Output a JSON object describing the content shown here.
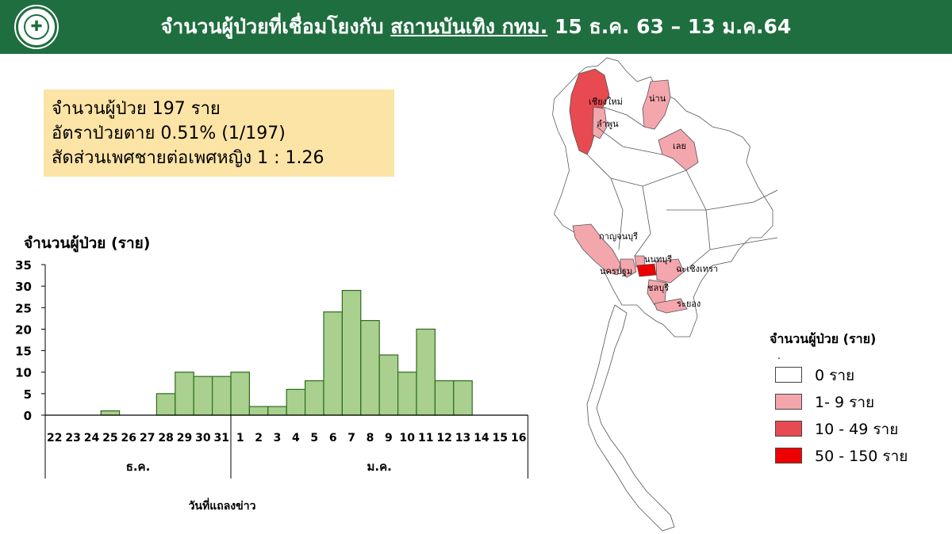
{
  "header": {
    "title_pre": "จำนวนผู้ป่วยที่เชื่อมโยงกับ ",
    "title_underlined": "สถานบันเทิง กทม.",
    "title_post": " 15 ธ.ค. 63 – 13 ม.ค.64",
    "bg_color": "#1f6e3f"
  },
  "stats": {
    "cases": "จำนวนผู้ป่วย 197 ราย",
    "fatality": "อัตราป่วยตาย 0.51% (1/197)",
    "sex_ratio": "สัดส่วนเพศชายต่อเพศหญิง 1 : 1.26"
  },
  "chart_data": {
    "type": "bar",
    "ylabel": "จำนวนผู้ป่วย (ราย)",
    "xlabel": "วันที่แถลงข่าว",
    "ylim": [
      0,
      35
    ],
    "yticks": [
      "0",
      "5",
      "10",
      "15",
      "20",
      "25",
      "30",
      "35"
    ],
    "categories": [
      "22",
      "23",
      "24",
      "25",
      "26",
      "27",
      "28",
      "29",
      "30",
      "31",
      "1",
      "2",
      "3",
      "4",
      "5",
      "6",
      "7",
      "8",
      "9",
      "10",
      "11",
      "12",
      "13",
      "14",
      "15",
      "16"
    ],
    "values": [
      0,
      0,
      0,
      1,
      0,
      0,
      5,
      10,
      9,
      9,
      10,
      2,
      2,
      6,
      8,
      24,
      29,
      22,
      14,
      10,
      20,
      8,
      8,
      0,
      0,
      0
    ],
    "month_groups": [
      {
        "label": "ธ.ค.",
        "count": 10
      },
      {
        "label": "ม.ค.",
        "count": 16
      }
    ],
    "bar_color": "#a9d08e",
    "bar_edge": "#2e6b1c"
  },
  "map": {
    "legend_title": "จำนวนผู้ป่วย (ราย)",
    "legend_dot": ".",
    "legend": [
      {
        "label": "0 ราย",
        "color": "#ffffff"
      },
      {
        "label": "1- 9 ราย",
        "color": "#f4a6ad"
      },
      {
        "label": "10 - 49 ราย",
        "color": "#e84a52"
      },
      {
        "label": "50 - 150 ราย",
        "color": "#ee0000"
      }
    ],
    "provinces": [
      {
        "name": "เชียงใหม่",
        "level": 2
      },
      {
        "name": "ลำพูน",
        "level": 1
      },
      {
        "name": "น่าน",
        "level": 1
      },
      {
        "name": "เลย",
        "level": 1
      },
      {
        "name": "กาญจนบุรี",
        "level": 1
      },
      {
        "name": "นนทบุรี",
        "level": 1
      },
      {
        "name": "นครปฐม",
        "level": 1
      },
      {
        "name": "ฉะเชิงเทรา",
        "level": 1
      },
      {
        "name": "ชลบุรี",
        "level": 1
      },
      {
        "name": "ระยอง",
        "level": 1
      },
      {
        "name": "กรุงเทพฯ",
        "level": 3,
        "label_hidden": true
      }
    ]
  }
}
